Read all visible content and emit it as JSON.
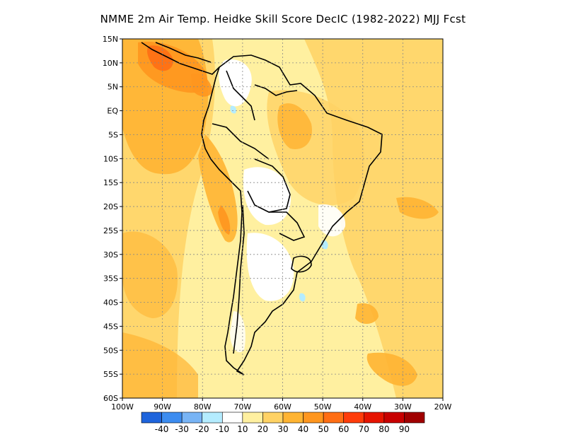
{
  "title": "NMME  2m Air Temp. Heidke Skill Score DecIC (1982-2022) MJJ Fcst",
  "map": {
    "lon_range": [
      -100,
      -20
    ],
    "lat_range": [
      -60,
      15
    ],
    "lat_ticks": [
      15,
      10,
      5,
      0,
      -5,
      -10,
      -15,
      -20,
      -25,
      -30,
      -35,
      -40,
      -45,
      -50,
      -55,
      -60
    ],
    "lat_labels": [
      "15N",
      "10N",
      "5N",
      "EQ",
      "5S",
      "10S",
      "15S",
      "20S",
      "25S",
      "30S",
      "35S",
      "40S",
      "45S",
      "50S",
      "55S",
      "60S"
    ],
    "lon_ticks": [
      -100,
      -90,
      -80,
      -70,
      -60,
      -50,
      -40,
      -30,
      -20
    ],
    "lon_labels": [
      "100W",
      "90W",
      "80W",
      "70W",
      "60W",
      "50W",
      "40W",
      "30W",
      "20W"
    ],
    "grid": true,
    "grid_style": "dotted"
  },
  "colorbar": {
    "colors": [
      "#1e64dc",
      "#3c8cf0",
      "#78b4f5",
      "#b4ecff",
      "#ffffff",
      "#fff0a0",
      "#ffd264",
      "#ffb432",
      "#ff961e",
      "#ff6e14",
      "#ff3c0a",
      "#e61400",
      "#c80000",
      "#a00000"
    ],
    "labels": [
      "-40",
      "-30",
      "-20",
      "-10",
      "10",
      "20",
      "30",
      "40",
      "50",
      "60",
      "70",
      "80",
      "90"
    ]
  }
}
